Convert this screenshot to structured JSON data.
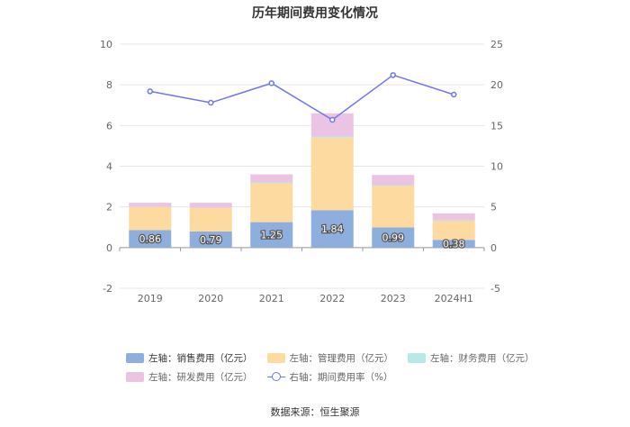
{
  "chart_data": {
    "type": "bar",
    "title": "历年期间费用变化情况",
    "categories": [
      "2019",
      "2020",
      "2021",
      "2022",
      "2023",
      "2024H1"
    ],
    "left_axis": {
      "min": -2,
      "max": 10,
      "ticks": [
        "-2",
        "0",
        "2",
        "4",
        "6",
        "8",
        "10"
      ]
    },
    "right_axis": {
      "min": -5,
      "max": 25,
      "ticks": [
        "-5",
        "0",
        "5",
        "10",
        "15",
        "20",
        "25"
      ]
    },
    "stacked": true,
    "series": [
      {
        "name": "左轴：销售费用（亿元）",
        "type": "bar",
        "axis": "left",
        "color": "#8eaedd",
        "values": [
          0.86,
          0.79,
          1.25,
          1.84,
          0.99,
          0.38
        ],
        "labels": [
          "0.86",
          "0.79",
          "1.25",
          "1.84",
          "0.99",
          "0.38"
        ]
      },
      {
        "name": "左轴：管理费用（亿元）",
        "type": "bar",
        "axis": "left",
        "color": "#fddba0",
        "values": [
          1.14,
          1.16,
          1.93,
          3.56,
          2.06,
          0.95
        ]
      },
      {
        "name": "左轴：财务费用（亿元）",
        "type": "bar",
        "axis": "left",
        "color": "#b8e8e8",
        "values": [
          0.0,
          0.0,
          0.02,
          0.06,
          0.02,
          0.02
        ]
      },
      {
        "name": "左轴：研发费用（亿元）",
        "type": "bar",
        "axis": "left",
        "color": "#ebc3e3",
        "values": [
          0.2,
          0.25,
          0.4,
          1.14,
          0.5,
          0.33
        ]
      },
      {
        "name": "右轴：期间费用率（%）",
        "type": "line",
        "axis": "right",
        "color": "#6e76f0",
        "values": [
          19.2,
          17.8,
          20.2,
          15.7,
          21.2,
          18.8
        ]
      }
    ],
    "grid": true,
    "legend_position": "bottom"
  },
  "source": "数据来源：恒生聚源"
}
